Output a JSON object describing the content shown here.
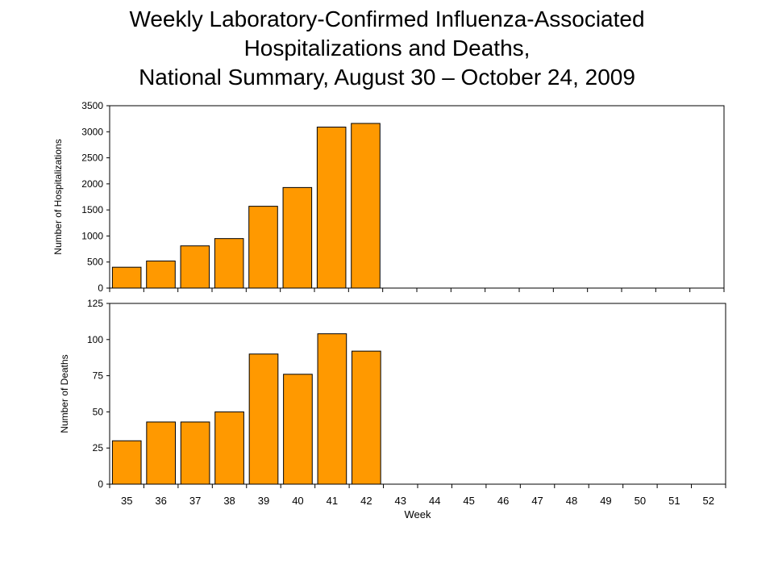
{
  "title_lines": [
    "Weekly Laboratory-Confirmed Influenza-Associated",
    "Hospitalizations and Deaths,",
    "National Summary, August 30 – October 24, 2009"
  ],
  "bar_color": "#FF9900",
  "chart_data": [
    {
      "type": "bar",
      "ylabel": "Number of Hospitalizations",
      "ylim": [
        0,
        3500
      ],
      "yticks": [
        0,
        500,
        1000,
        1500,
        2000,
        2500,
        3000,
        3500
      ],
      "categories": [
        "35",
        "36",
        "37",
        "38",
        "39",
        "40",
        "41",
        "42",
        "43",
        "44",
        "45",
        "46",
        "47",
        "48",
        "49",
        "50",
        "51",
        "52"
      ],
      "values": [
        400,
        520,
        810,
        950,
        1570,
        1930,
        3090,
        3160,
        null,
        null,
        null,
        null,
        null,
        null,
        null,
        null,
        null,
        null
      ],
      "grid": false
    },
    {
      "type": "bar",
      "xlabel": "Week",
      "ylabel": "Number of Deaths",
      "ylim": [
        0,
        125
      ],
      "yticks": [
        0,
        25,
        50,
        75,
        100,
        125
      ],
      "categories": [
        "35",
        "36",
        "37",
        "38",
        "39",
        "40",
        "41",
        "42",
        "43",
        "44",
        "45",
        "46",
        "47",
        "48",
        "49",
        "50",
        "51",
        "52"
      ],
      "values": [
        30,
        43,
        43,
        50,
        90,
        76,
        104,
        92,
        null,
        null,
        null,
        null,
        null,
        null,
        null,
        null,
        null,
        null
      ],
      "grid": false
    }
  ]
}
